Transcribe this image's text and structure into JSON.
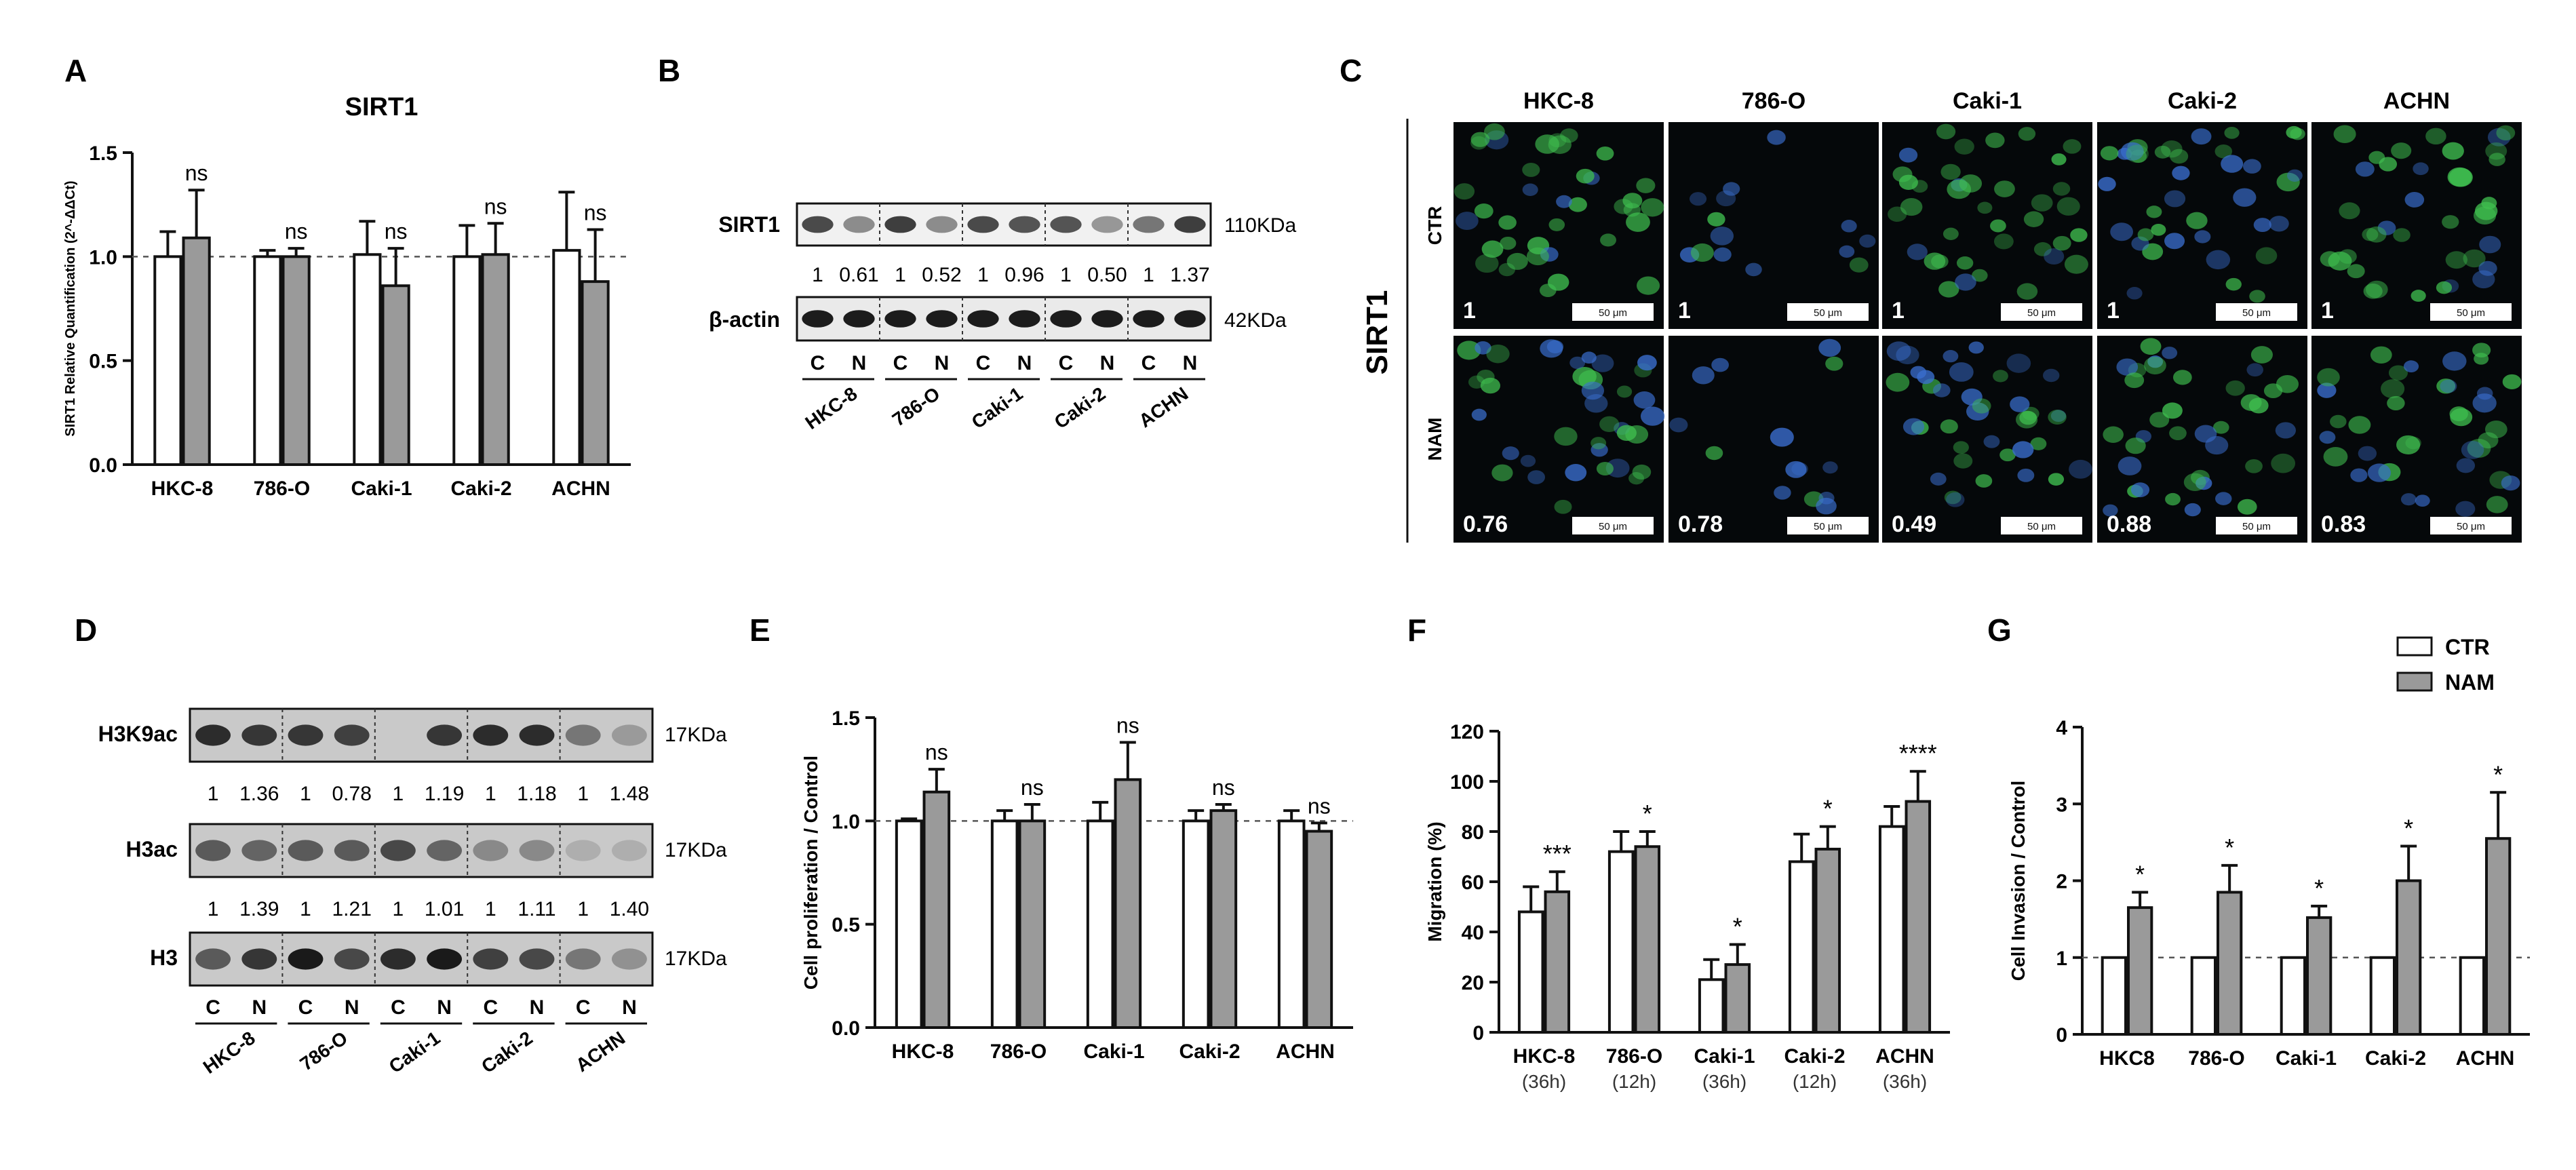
{
  "panels": {
    "A": {
      "letter": "A"
    },
    "B": {
      "letter": "B",
      "protein": "SIRT1",
      "protein_kda": "110KDa",
      "loading": "β-actin",
      "loading_kda": "42KDa",
      "ratios": [
        "1",
        "0.61",
        "1",
        "0.52",
        "1",
        "0.96",
        "1",
        "0.50",
        "1",
        "1.37"
      ],
      "lane_labels": [
        "C",
        "N"
      ],
      "cell_lines": [
        "HKC-8",
        "786-O",
        "Caki-1",
        "Caki-2",
        "ACHN"
      ]
    },
    "C": {
      "letter": "C",
      "side_label": "SIRT1",
      "cell_lines": [
        "HKC-8",
        "786-O",
        "Caki-1",
        "Caki-2",
        "ACHN"
      ],
      "rows": [
        {
          "label": "CTR",
          "values": [
            "1",
            "1",
            "1",
            "1",
            "1"
          ]
        },
        {
          "label": "NAM",
          "values": [
            "0.76",
            "0.78",
            "0.49",
            "0.88",
            "0.83"
          ]
        }
      ],
      "scale_bar": "50 μm"
    },
    "D": {
      "letter": "D",
      "bands": [
        {
          "name": "H3K9ac",
          "kda": "17KDa",
          "ratios": [
            "1",
            "1.36",
            "1",
            "0.78",
            "1",
            "1.19",
            "1",
            "1.18",
            "1",
            "1.48"
          ]
        },
        {
          "name": "H3ac",
          "kda": "17KDa",
          "ratios": [
            "1",
            "1.39",
            "1",
            "1.21",
            "1",
            "1.01",
            "1",
            "1.11",
            "1",
            "1.40"
          ]
        },
        {
          "name": "H3",
          "kda": "17KDa",
          "ratios": []
        }
      ],
      "lane_labels": [
        "C",
        "N"
      ],
      "cell_lines": [
        "HKC-8",
        "786-O",
        "Caki-1",
        "Caki-2",
        "ACHN"
      ]
    },
    "E": {
      "letter": "E"
    },
    "F": {
      "letter": "F"
    },
    "G": {
      "letter": "G"
    }
  },
  "legend": {
    "items": [
      {
        "label": "CTR",
        "color": "#ffffff"
      },
      {
        "label": "NAM",
        "color": "#9a9a9a"
      }
    ]
  },
  "colors": {
    "ctr": "#ffffff",
    "nam": "#9a9a9a",
    "axis": "#111111",
    "fluor_green": "#3fbf4f",
    "fluor_blue": "#3a6fd0"
  },
  "chart_data": [
    {
      "panel": "A",
      "type": "bar",
      "title": "SIRT1",
      "ylabel": "SIRT1 Relative Quantification (2^-ΔΔCt)",
      "xlabel": "",
      "categories": [
        "HKC-8",
        "786-O",
        "Caki-1",
        "Caki-2",
        "ACHN"
      ],
      "ylim": [
        0,
        1.5
      ],
      "yticks": [
        "0.0",
        "0.5",
        "1.0",
        "1.5"
      ],
      "refline": 1.0,
      "series": [
        {
          "name": "CTR",
          "values": [
            1.0,
            1.0,
            1.01,
            1.0,
            1.03
          ],
          "errors": [
            0.12,
            0.03,
            0.16,
            0.15,
            0.28
          ]
        },
        {
          "name": "NAM",
          "values": [
            1.09,
            1.0,
            0.86,
            1.01,
            0.88
          ],
          "errors": [
            0.23,
            0.04,
            0.18,
            0.15,
            0.25
          ]
        }
      ],
      "annotations": [
        "ns",
        "ns",
        "ns",
        "ns",
        "ns"
      ]
    },
    {
      "panel": "E",
      "type": "bar",
      "title": "",
      "ylabel": "Cell proliferation / Control",
      "xlabel": "",
      "categories": [
        "HKC-8",
        "786-O",
        "Caki-1",
        "Caki-2",
        "ACHN"
      ],
      "ylim": [
        0,
        1.5
      ],
      "yticks": [
        "0.0",
        "0.5",
        "1.0",
        "1.5"
      ],
      "refline": 1.0,
      "series": [
        {
          "name": "CTR",
          "values": [
            1.0,
            1.0,
            1.0,
            1.0,
            1.0
          ],
          "errors": [
            0.01,
            0.05,
            0.09,
            0.05,
            0.05
          ]
        },
        {
          "name": "NAM",
          "values": [
            1.14,
            1.0,
            1.2,
            1.05,
            0.95
          ],
          "errors": [
            0.11,
            0.08,
            0.18,
            0.03,
            0.04
          ]
        }
      ],
      "annotations": [
        "ns",
        "ns",
        "ns",
        "ns",
        "ns"
      ]
    },
    {
      "panel": "F",
      "type": "bar",
      "title": "",
      "ylabel": "Migration (%)",
      "xlabel": "",
      "categories": [
        "HKC-8",
        "786-O",
        "Caki-1",
        "Caki-2",
        "ACHN"
      ],
      "sublabels": [
        "(36h)",
        "(12h)",
        "(36h)",
        "(12h)",
        "(36h)"
      ],
      "ylim": [
        0,
        120
      ],
      "yticks": [
        "0",
        "20",
        "40",
        "60",
        "80",
        "100",
        "120"
      ],
      "refline": null,
      "series": [
        {
          "name": "CTR",
          "values": [
            48,
            72,
            21,
            68,
            82
          ],
          "errors": [
            10,
            8,
            8,
            11,
            8
          ]
        },
        {
          "name": "NAM",
          "values": [
            56,
            74,
            27,
            73,
            92
          ],
          "errors": [
            8,
            6,
            8,
            9,
            12
          ]
        }
      ],
      "annotations": [
        "***",
        "*",
        "*",
        "*",
        "****"
      ]
    },
    {
      "panel": "G",
      "type": "bar",
      "title": "",
      "ylabel": "Cell Invasion / Control",
      "xlabel": "",
      "categories": [
        "HKC8",
        "786-O",
        "Caki-1",
        "Caki-2",
        "ACHN"
      ],
      "ylim": [
        0,
        4
      ],
      "yticks": [
        "0",
        "1",
        "2",
        "3",
        "4"
      ],
      "refline": 1.0,
      "series": [
        {
          "name": "CTR",
          "values": [
            1.0,
            1.0,
            1.0,
            1.0,
            1.0
          ],
          "errors": [
            0,
            0,
            0,
            0,
            0
          ]
        },
        {
          "name": "NAM",
          "values": [
            1.65,
            1.85,
            1.52,
            2.0,
            2.55
          ],
          "errors": [
            0.2,
            0.35,
            0.15,
            0.45,
            0.6
          ]
        }
      ],
      "annotations": [
        "*",
        "*",
        "*",
        "*",
        "*"
      ],
      "legend_position": "top-right"
    }
  ]
}
